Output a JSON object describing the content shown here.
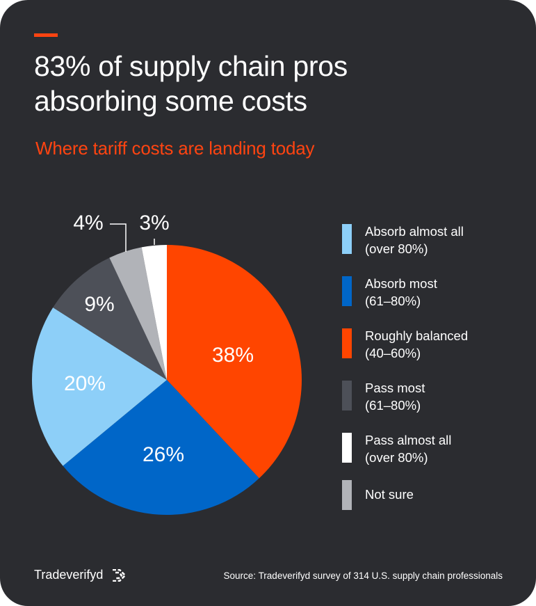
{
  "header": {
    "title_line1": "83% of supply chain pros",
    "title_line2": "absorbing some costs",
    "subtitle": "Where tariff costs are landing today"
  },
  "colors": {
    "background": "#2b2c30",
    "accent": "#ff4411",
    "text": "#ffffff"
  },
  "chart_data": {
    "type": "pie",
    "title": "Where tariff costs are landing today",
    "start": "12 o'clock",
    "direction": "clockwise",
    "slices": [
      {
        "label": "Roughly balanced (40–60%)",
        "value": 38,
        "display": "38%",
        "color": "#ff4500"
      },
      {
        "label": "Absorb most (61–80%)",
        "value": 26,
        "display": "26%",
        "color": "#0066c8"
      },
      {
        "label": "Absorb almost all (over 80%)",
        "value": 20,
        "display": "20%",
        "color": "#8dcff8"
      },
      {
        "label": "Pass most (61–80%)",
        "value": 9,
        "display": "9%",
        "color": "#4d5058"
      },
      {
        "label": "Not sure",
        "value": 4,
        "display": "4%",
        "color": "#b1b3b8"
      },
      {
        "label": "Pass almost all (over 80%)",
        "value": 3,
        "display": "3%",
        "color": "#ffffff"
      }
    ]
  },
  "legend": [
    {
      "label": "Absorb almost all\n(over 80%)",
      "color": "#8dcff8"
    },
    {
      "label": "Absorb most\n(61–80%)",
      "color": "#0066c8"
    },
    {
      "label": "Roughly balanced\n(40–60%)",
      "color": "#ff4500"
    },
    {
      "label": "Pass most\n(61–80%)",
      "color": "#4d5058"
    },
    {
      "label": "Pass almost all\n(over 80%)",
      "color": "#ffffff"
    },
    {
      "label": "Not sure",
      "color": "#b1b3b8"
    }
  ],
  "footer": {
    "brand": "Tradeverifyd",
    "brand_icon": "tradeverifyd-logo-icon",
    "source": "Source: Tradeverifyd survey of 314 U.S. supply chain professionals"
  }
}
